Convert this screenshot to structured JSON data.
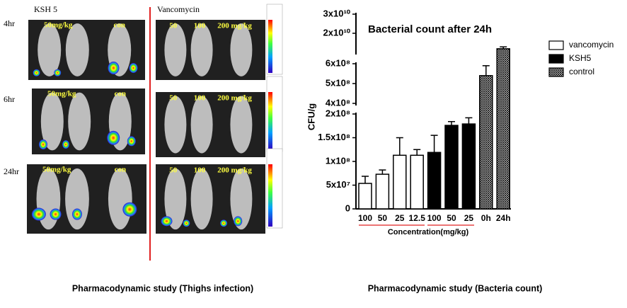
{
  "imaging": {
    "group_labels": [
      "KSH 5",
      "Vancomycin"
    ],
    "time_labels": [
      "4hr",
      "6hr",
      "24hr"
    ],
    "ksh5_labels": [
      {
        "dose": "50mg/kg",
        "control": "con"
      },
      {
        "dose": "50mg/kg",
        "control": "con"
      },
      {
        "dose": "50mg/kg",
        "control": "con"
      }
    ],
    "vancomycin_labels": [
      [
        "50",
        "100",
        "200 mg/kg"
      ],
      [
        "50",
        "100",
        "200 mg/kg"
      ],
      [
        "50",
        "100",
        "200 mg/kg"
      ]
    ],
    "caption": "Pharmacodynamic study (Thighs infection)"
  },
  "chart_data": {
    "type": "bar",
    "title": "Bacterial count after 24h",
    "y_label": "CFU/g",
    "x_label": "Concentration(mg/kg)",
    "caption": "Pharmacodynamic study (Bacteria count)",
    "categories": [
      "100",
      "50",
      "25",
      "12.5",
      "100",
      "50",
      "25",
      "0h",
      "24h"
    ],
    "series": [
      {
        "name": "vancomycin",
        "color": "#ffffff",
        "values": [
          53700000,
          73000000,
          113000000,
          113000000,
          null,
          null,
          null,
          null,
          null
        ],
        "errors": [
          15000000,
          9000000,
          37000000,
          12000000,
          null,
          null,
          null,
          null,
          null
        ]
      },
      {
        "name": "KSH5",
        "color": "#000000",
        "values": [
          null,
          null,
          null,
          null,
          119000000,
          176000000,
          179000000,
          null,
          null
        ],
        "errors": [
          null,
          null,
          null,
          null,
          36000000,
          8000000,
          13000000,
          null,
          null
        ]
      },
      {
        "name": "control",
        "color": "#000000",
        "pattern": "crosshatch",
        "values": [
          null,
          null,
          null,
          null,
          null,
          null,
          null,
          540000000,
          11900000000
        ],
        "errors": [
          null,
          null,
          null,
          null,
          null,
          null,
          null,
          50000000,
          1000000000
        ]
      }
    ],
    "y_segments": [
      {
        "ylim": [
          0,
          200000000
        ],
        "yticks": [
          0,
          {
            "value": 50000000,
            "label": "5x10⁷"
          },
          {
            "value": 100000000,
            "label": "1x10⁸"
          },
          {
            "value": 150000000,
            "label": "1.5x10⁸"
          },
          {
            "value": 200000000,
            "label": "2x10⁸"
          }
        ]
      },
      {
        "ylim": [
          400000000,
          600000000
        ],
        "yticks": [
          {
            "value": 400000000,
            "label": "4x10⁸"
          },
          {
            "value": 500000000,
            "label": "5x10⁸"
          },
          {
            "value": 600000000,
            "label": "6x10⁸"
          }
        ]
      },
      {
        "ylim": [
          10000000000,
          30000000000
        ],
        "yticks": [
          {
            "value": 20000000000,
            "label": "2x10¹⁰"
          },
          {
            "value": 30000000000,
            "label": "3x10¹⁰"
          }
        ]
      }
    ],
    "legend": "upper-right"
  }
}
